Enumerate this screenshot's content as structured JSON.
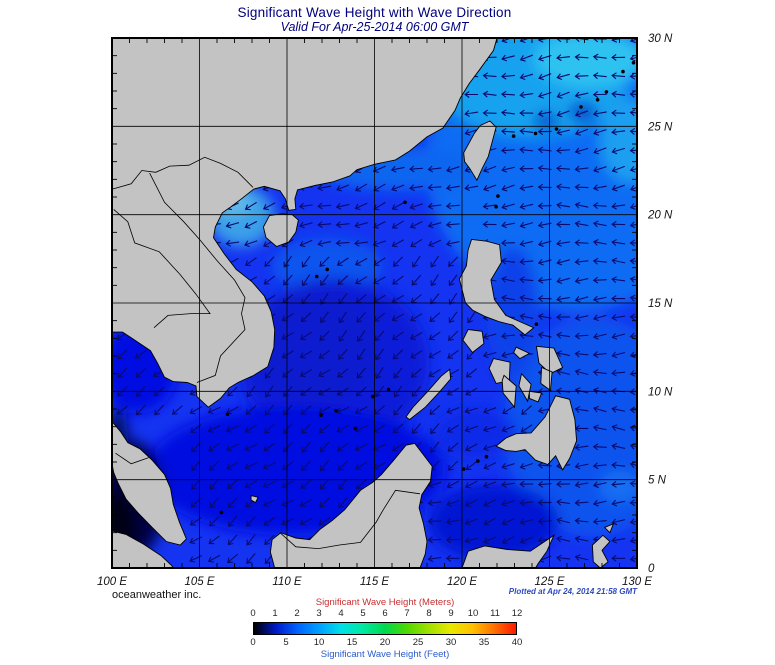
{
  "header": {
    "title": "Significant Wave Height with Wave Direction",
    "subtitle": "Valid For Apr-25-2014 06:00 GMT"
  },
  "footer": {
    "credit": "oceanweather inc.",
    "plotted": "Plotted at Apr 24, 2014 21:58 GMT"
  },
  "axes": {
    "x_ticks": [
      "100 E",
      "105 E",
      "110 E",
      "115 E",
      "120 E",
      "125 E",
      "130 E"
    ],
    "y_ticks": [
      "30 N",
      "25 N",
      "20 N",
      "15 N",
      "10 N",
      "5 N",
      "0"
    ]
  },
  "colorbar": {
    "title_meters": "Significant Wave Height (Meters)",
    "title_feet": "Significant Wave Height (Feet)",
    "meters_ticks": [
      "0",
      "1",
      "2",
      "3",
      "4",
      "5",
      "6",
      "7",
      "8",
      "9",
      "10",
      "11",
      "12"
    ],
    "feet_ticks": [
      "0",
      "5",
      "10",
      "15",
      "20",
      "25",
      "30",
      "35",
      "40"
    ],
    "gradient": [
      "#000000",
      "#0018c8",
      "#0064ff",
      "#00a0ff",
      "#00e0e8",
      "#00e8a0",
      "#00d850",
      "#50d800",
      "#a0e000",
      "#e8e800",
      "#ffc000",
      "#ff7000",
      "#ff1800"
    ]
  },
  "map": {
    "extent": {
      "lon_min": 100,
      "lon_max": 130,
      "lat_min": 0,
      "lat_max": 30
    },
    "colors": {
      "land": "#c3c3c3",
      "coast": "#000000",
      "grid": "#000000",
      "arrow": "#0a0a6e",
      "ocean_base": "#1434f1"
    },
    "wave_field": {
      "regions": [
        {
          "name": "malacca-strait-calm",
          "lon": [
            99,
            103.8
          ],
          "lat": [
            0,
            8.6
          ],
          "skip": true
        },
        {
          "name": "gulf-of-thailand",
          "lon": [
            99,
            103
          ],
          "lat": [
            8.6,
            14
          ],
          "bearing": 235
        },
        {
          "name": "sulu-sea",
          "lon": [
            118.5,
            124.5
          ],
          "lat": [
            4.8,
            9.5
          ],
          "bearing": 240
        },
        {
          "name": "celebes-sea",
          "lon": [
            116.5,
            125
          ],
          "lat": [
            0,
            4.8
          ],
          "bearing": 255
        },
        {
          "name": "pacific-equatorial",
          "lon": [
            125,
            130.5
          ],
          "lat": [
            0,
            5
          ],
          "bearing": 270
        },
        {
          "name": "pacific-south",
          "lon": [
            124.5,
            130.5
          ],
          "lat": [
            5,
            12
          ],
          "bearing": 272
        },
        {
          "name": "pacific-mid",
          "lon": [
            121.5,
            130.5
          ],
          "lat": [
            12,
            21
          ],
          "bearing": 268
        },
        {
          "name": "pacific-north",
          "lon": [
            119.5,
            130.5
          ],
          "lat": [
            21,
            30.5
          ],
          "bearing": 263
        },
        {
          "name": "luzon-strait-northern-scs",
          "lon": [
            105,
            119.5
          ],
          "lat": [
            17.5,
            23
          ],
          "bearing": 252
        },
        {
          "name": "central-south-china-sea",
          "lon": [
            104.5,
            121.5
          ],
          "lat": [
            9,
            17.5
          ],
          "bearing": 227
        },
        {
          "name": "southern-scs-java",
          "lon": [
            102.5,
            118.5
          ],
          "lat": [
            0,
            9
          ],
          "bearing": 232
        }
      ]
    }
  },
  "chart_data": {
    "type": "heatmap",
    "title": "Significant Wave Height with Wave Direction",
    "legend_meters": [
      0,
      1,
      2,
      3,
      4,
      5,
      6,
      7,
      8,
      9,
      10,
      11,
      12
    ],
    "legend_feet": [
      0,
      5,
      10,
      15,
      20,
      25,
      30,
      35,
      40
    ],
    "x_range_deg_east": [
      100,
      130
    ],
    "y_range_deg_north": [
      0,
      30
    ]
  }
}
